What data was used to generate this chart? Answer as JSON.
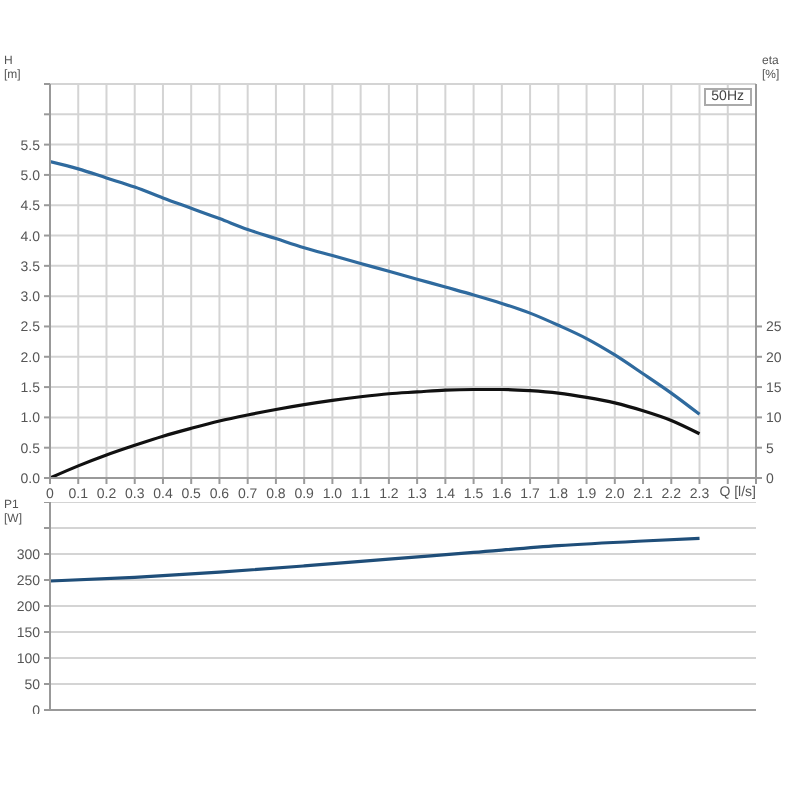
{
  "chart_data": [
    {
      "type": "line",
      "xlabel": "Q [l/s]",
      "ylabel": "H\n[m]",
      "y2label": "eta\n[%]",
      "annotations": [
        "50Hz"
      ],
      "grid": true,
      "marker": "none",
      "line_style": "solid",
      "xlim": [
        0,
        2.5
      ],
      "xticks": [
        0,
        0.1,
        0.2,
        0.3,
        0.4,
        0.5,
        0.6,
        0.7,
        0.8,
        0.9,
        {
          "value": 1,
          "label": "1.0"
        },
        1.1,
        1.2,
        1.3,
        1.4,
        1.5,
        1.6,
        1.7,
        1.8,
        1.9,
        {
          "value": 2,
          "label": "2.0"
        },
        2.1,
        2.2,
        2.3,
        {
          "value": 2.4,
          "label": null
        },
        {
          "value": 2.5,
          "label": null
        }
      ],
      "ylim": [
        0,
        6.5
      ],
      "yticks": [
        {
          "value": 0,
          "label": "0.0"
        },
        0.5,
        {
          "value": 1,
          "label": "1.0"
        },
        1.5,
        {
          "value": 2,
          "label": "2.0"
        },
        2.5,
        {
          "value": 3,
          "label": "3.0"
        },
        3.5,
        {
          "value": 4,
          "label": "4.0"
        },
        4.5,
        {
          "value": 5,
          "label": "5.0"
        },
        5.5,
        {
          "value": 6,
          "label": null
        },
        {
          "value": 6.5,
          "label": null
        }
      ],
      "y2lim": [
        0,
        65
      ],
      "y2ticks": [
        0,
        5,
        10,
        15,
        20,
        25
      ],
      "x": [
        0,
        0.1,
        0.2,
        0.3,
        0.4,
        0.5,
        0.6,
        0.7,
        0.8,
        0.9,
        1.0,
        1.1,
        1.2,
        1.3,
        1.4,
        1.5,
        1.6,
        1.7,
        1.8,
        1.9,
        2.0,
        2.1,
        2.2,
        2.3
      ],
      "series": [
        {
          "color": "#2f6a9e",
          "values": [
            5.22,
            5.1,
            4.95,
            4.8,
            4.62,
            4.45,
            4.28,
            4.1,
            3.95,
            3.8,
            3.67,
            3.54,
            3.41,
            3.28,
            3.15,
            3.02,
            2.88,
            2.72,
            2.52,
            2.3,
            2.03,
            1.72,
            1.4,
            1.05
          ]
        },
        {
          "color": "#111111",
          "axis": "y2",
          "values": [
            0,
            2,
            3.8,
            5.4,
            6.9,
            8.2,
            9.4,
            10.4,
            11.3,
            12.1,
            12.8,
            13.4,
            13.9,
            14.2,
            14.5,
            14.6,
            14.6,
            14.4,
            14,
            13.3,
            12.4,
            11.1,
            9.5,
            7.3
          ]
        }
      ]
    },
    {
      "type": "line",
      "ylabel": "P1\n[W]",
      "grid": true,
      "marker": "none",
      "line_style": "solid",
      "tick_labels": "y",
      "xlim": [
        0,
        2.5
      ],
      "xticks": [
        0,
        0.1,
        0.2,
        0.3,
        0.4,
        0.5,
        0.6,
        0.7,
        0.8,
        0.9,
        1,
        1.1,
        1.2,
        1.3,
        1.4,
        1.5,
        1.6,
        1.7,
        1.8,
        1.9,
        2,
        2.1,
        2.2,
        2.3,
        2.4,
        2.5
      ],
      "ylim": [
        0,
        400
      ],
      "yticks": [
        0,
        50,
        100,
        150,
        200,
        250,
        300,
        {
          "value": 350,
          "label": null
        },
        {
          "value": 400,
          "label": null
        }
      ],
      "x": [
        0,
        0.3,
        0.6,
        0.9,
        1.2,
        1.5,
        1.8,
        2.1,
        2.3
      ],
      "series": [
        {
          "color": "#1f4e79",
          "values": [
            248,
            255,
            265,
            277,
            290,
            303,
            316,
            325,
            330
          ]
        }
      ]
    }
  ]
}
